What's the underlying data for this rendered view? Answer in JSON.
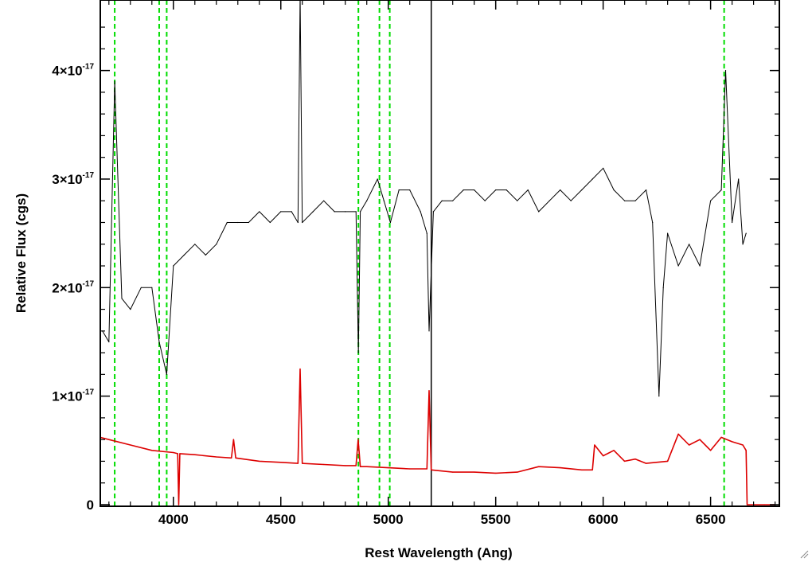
{
  "chart_data": {
    "type": "line",
    "title": "",
    "xlabel": "Rest Wavelength (Ang)",
    "ylabel": "Relative Flux (cgs)",
    "xlim": [
      3660,
      6820
    ],
    "ylim": [
      -1.5e-19,
      4.65e-17
    ],
    "x_ticks": [
      4000,
      4500,
      5000,
      5500,
      6000,
      6500
    ],
    "x_tick_labels": [
      "4000",
      "4500",
      "5000",
      "5500",
      "6000",
      "6500"
    ],
    "y_ticks": [
      0,
      1e-17,
      2e-17,
      3e-17,
      4e-17
    ],
    "y_tick_labels": [
      {
        "mantissa": "0",
        "exponent": ""
      },
      {
        "mantissa": "1×10",
        "exponent": "-17"
      },
      {
        "mantissa": "2×10",
        "exponent": "-17"
      },
      {
        "mantissa": "3×10",
        "exponent": "-17"
      },
      {
        "mantissa": "4×10",
        "exponent": "-17"
      }
    ],
    "grid": false,
    "reference_lines": [
      {
        "x": 3727,
        "style": "dashed",
        "color": "#00dd00"
      },
      {
        "x": 3934,
        "style": "dashed",
        "color": "#00dd00"
      },
      {
        "x": 3969,
        "style": "dashed",
        "color": "#00dd00"
      },
      {
        "x": 4861,
        "style": "dashed",
        "color": "#00dd00"
      },
      {
        "x": 4959,
        "style": "dashed",
        "color": "#00dd00"
      },
      {
        "x": 5007,
        "style": "dashed",
        "color": "#00dd00"
      },
      {
        "x": 6563,
        "style": "dashed",
        "color": "#00dd00"
      },
      {
        "x": 5200,
        "style": "solid",
        "color": "#000000"
      }
    ],
    "series": [
      {
        "color": "#000000",
        "x": [
          3670,
          3700,
          3727,
          3760,
          3800,
          3850,
          3900,
          3934,
          3969,
          4000,
          4050,
          4100,
          4150,
          4200,
          4250,
          4300,
          4350,
          4400,
          4450,
          4500,
          4550,
          4580,
          4590,
          4600,
          4650,
          4700,
          4750,
          4800,
          4850,
          4861,
          4870,
          4900,
          4950,
          4980,
          5010,
          5050,
          5100,
          5150,
          5180,
          5190,
          5210,
          5250,
          5300,
          5350,
          5400,
          5450,
          5500,
          5550,
          5600,
          5650,
          5700,
          5750,
          5800,
          5850,
          5900,
          5950,
          6000,
          6050,
          6100,
          6150,
          6200,
          6230,
          6260,
          6280,
          6300,
          6350,
          6400,
          6450,
          6500,
          6550,
          6570,
          6600,
          6630,
          6650,
          6665
        ],
        "y": [
          1.6e-17,
          1.5e-17,
          3.9e-17,
          1.9e-17,
          1.8e-17,
          2e-17,
          2e-17,
          1.5e-17,
          1.2e-17,
          2.2e-17,
          2.3e-17,
          2.4e-17,
          2.3e-17,
          2.4e-17,
          2.6e-17,
          2.6e-17,
          2.6e-17,
          2.7e-17,
          2.6e-17,
          2.7e-17,
          2.7e-17,
          2.6e-17,
          4.7e-17,
          2.6e-17,
          2.7e-17,
          2.8e-17,
          2.7e-17,
          2.7e-17,
          2.7e-17,
          1.4e-17,
          2.7e-17,
          2.8e-17,
          3e-17,
          2.8e-17,
          2.6e-17,
          2.9e-17,
          2.9e-17,
          2.7e-17,
          2.5e-17,
          1.6e-17,
          2.7e-17,
          2.8e-17,
          2.8e-17,
          2.9e-17,
          2.9e-17,
          2.8e-17,
          2.9e-17,
          2.9e-17,
          2.8e-17,
          2.9e-17,
          2.7e-17,
          2.8e-17,
          2.9e-17,
          2.8e-17,
          2.9e-17,
          3e-17,
          3.1e-17,
          2.9e-17,
          2.8e-17,
          2.8e-17,
          2.9e-17,
          2.6e-17,
          1e-17,
          2e-17,
          2.5e-17,
          2.2e-17,
          2.4e-17,
          2.2e-17,
          2.8e-17,
          2.9e-17,
          4e-17,
          2.6e-17,
          3e-17,
          2.4e-17,
          2.5e-17
        ]
      },
      {
        "color": "#dd0000",
        "x": [
          3660,
          3700,
          3800,
          3900,
          4000,
          4020,
          4025,
          4030,
          4100,
          4200,
          4270,
          4280,
          4290,
          4400,
          4500,
          4580,
          4590,
          4600,
          4700,
          4800,
          4850,
          4860,
          4870,
          4900,
          5000,
          5100,
          5180,
          5190,
          5200,
          5250,
          5300,
          5400,
          5500,
          5600,
          5700,
          5800,
          5900,
          5950,
          5960,
          6000,
          6050,
          6100,
          6150,
          6200,
          6300,
          6350,
          6400,
          6450,
          6500,
          6550,
          6600,
          6650,
          6665,
          6670,
          6700,
          6750,
          6800
        ],
        "y": [
          6.2e-18,
          6e-18,
          5.5e-18,
          5e-18,
          4.8e-18,
          4.7e-18,
          0,
          4.7e-18,
          4.6e-18,
          4.4e-18,
          4.3e-18,
          6e-18,
          4.3e-18,
          4e-18,
          3.9e-18,
          3.8e-18,
          1.25e-17,
          3.8e-18,
          3.7e-18,
          3.6e-18,
          3.6e-18,
          6e-18,
          3.5e-18,
          3.5e-18,
          3.4e-18,
          3.3e-18,
          3.3e-18,
          1.05e-17,
          3.2e-18,
          3.1e-18,
          3e-18,
          3e-18,
          2.9e-18,
          3e-18,
          3.5e-18,
          3.4e-18,
          3.2e-18,
          3.2e-18,
          5.5e-18,
          4.5e-18,
          5e-18,
          4e-18,
          4.2e-18,
          3.8e-18,
          4e-18,
          6.5e-18,
          5.5e-18,
          6e-18,
          5e-18,
          6.2e-18,
          5.8e-18,
          5.5e-18,
          5e-18,
          0,
          0,
          0,
          0
        ]
      }
    ]
  }
}
